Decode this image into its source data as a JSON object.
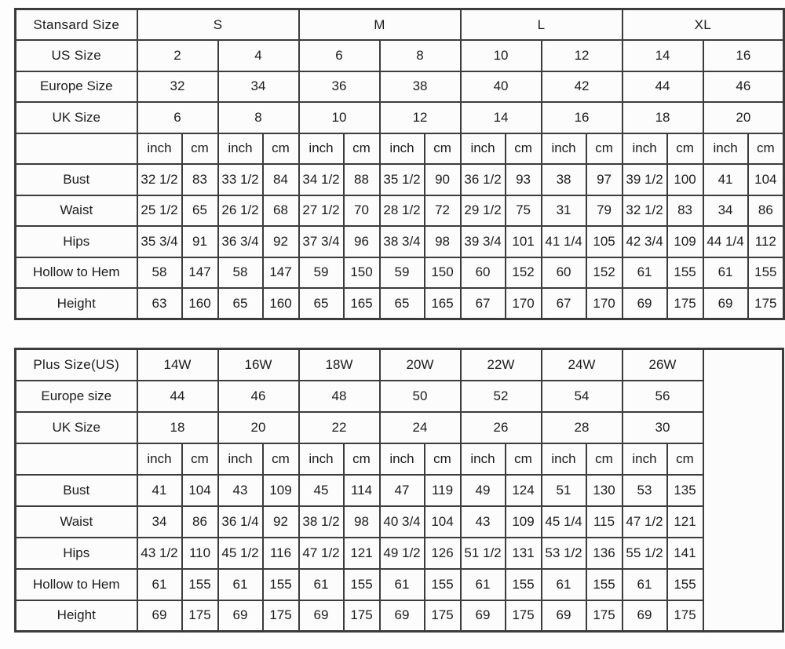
{
  "colors": {
    "border": "#3c3c3c",
    "cell_background": "#fcfcfc",
    "text": "#1c1c1c"
  },
  "unit_headers": {
    "inch": "inch",
    "cm": "cm"
  },
  "standard_table": {
    "header_label": "Stansard Size",
    "size_groups": [
      "S",
      "M",
      "L",
      "XL"
    ],
    "size_rows": [
      {
        "label": "US Size",
        "bold": true,
        "values": [
          "2",
          "4",
          "6",
          "8",
          "10",
          "12",
          "14",
          "16"
        ]
      },
      {
        "label": "Europe Size",
        "bold": false,
        "values": [
          "32",
          "34",
          "36",
          "38",
          "40",
          "42",
          "44",
          "46"
        ]
      },
      {
        "label": "UK Size",
        "bold": false,
        "values": [
          "6",
          "8",
          "10",
          "12",
          "14",
          "16",
          "18",
          "20"
        ]
      }
    ],
    "measurements": [
      {
        "label": "Bust",
        "pairs": [
          [
            "32 1/2",
            "83"
          ],
          [
            "33 1/2",
            "84"
          ],
          [
            "34 1/2",
            "88"
          ],
          [
            "35 1/2",
            "90"
          ],
          [
            "36 1/2",
            "93"
          ],
          [
            "38",
            "97"
          ],
          [
            "39 1/2",
            "100"
          ],
          [
            "41",
            "104"
          ]
        ]
      },
      {
        "label": "Waist",
        "pairs": [
          [
            "25 1/2",
            "65"
          ],
          [
            "26 1/2",
            "68"
          ],
          [
            "27 1/2",
            "70"
          ],
          [
            "28 1/2",
            "72"
          ],
          [
            "29 1/2",
            "75"
          ],
          [
            "31",
            "79"
          ],
          [
            "32 1/2",
            "83"
          ],
          [
            "34",
            "86"
          ]
        ]
      },
      {
        "label": "Hips",
        "pairs": [
          [
            "35 3/4",
            "91"
          ],
          [
            "36 3/4",
            "92"
          ],
          [
            "37 3/4",
            "96"
          ],
          [
            "38 3/4",
            "98"
          ],
          [
            "39 3/4",
            "101"
          ],
          [
            "41 1/4",
            "105"
          ],
          [
            "42 3/4",
            "109"
          ],
          [
            "44 1/4",
            "112"
          ]
        ]
      },
      {
        "label": "Hollow to Hem",
        "pairs": [
          [
            "58",
            "147"
          ],
          [
            "58",
            "147"
          ],
          [
            "59",
            "150"
          ],
          [
            "59",
            "150"
          ],
          [
            "60",
            "152"
          ],
          [
            "60",
            "152"
          ],
          [
            "61",
            "155"
          ],
          [
            "61",
            "155"
          ]
        ]
      },
      {
        "label": "Height",
        "pairs": [
          [
            "63",
            "160"
          ],
          [
            "65",
            "160"
          ],
          [
            "65",
            "165"
          ],
          [
            "65",
            "165"
          ],
          [
            "67",
            "170"
          ],
          [
            "67",
            "170"
          ],
          [
            "69",
            "175"
          ],
          [
            "69",
            "175"
          ]
        ]
      }
    ]
  },
  "plus_table": {
    "header_label": "Plus Size(US)",
    "sizes": [
      "14W",
      "16W",
      "18W",
      "20W",
      "22W",
      "24W",
      "26W"
    ],
    "size_rows": [
      {
        "label": "Europe size",
        "bold": false,
        "values": [
          "44",
          "46",
          "48",
          "50",
          "52",
          "54",
          "56"
        ]
      },
      {
        "label": "UK Size",
        "bold": false,
        "values": [
          "18",
          "20",
          "22",
          "24",
          "26",
          "28",
          "30"
        ]
      }
    ],
    "measurements": [
      {
        "label": "Bust",
        "pairs": [
          [
            "41",
            "104"
          ],
          [
            "43",
            "109"
          ],
          [
            "45",
            "114"
          ],
          [
            "47",
            "119"
          ],
          [
            "49",
            "124"
          ],
          [
            "51",
            "130"
          ],
          [
            "53",
            "135"
          ]
        ]
      },
      {
        "label": "Waist",
        "pairs": [
          [
            "34",
            "86"
          ],
          [
            "36 1/4",
            "92"
          ],
          [
            "38 1/2",
            "98"
          ],
          [
            "40 3/4",
            "104"
          ],
          [
            "43",
            "109"
          ],
          [
            "45 1/4",
            "115"
          ],
          [
            "47 1/2",
            "121"
          ]
        ]
      },
      {
        "label": "Hips",
        "pairs": [
          [
            "43 1/2",
            "110"
          ],
          [
            "45 1/2",
            "116"
          ],
          [
            "47 1/2",
            "121"
          ],
          [
            "49 1/2",
            "126"
          ],
          [
            "51 1/2",
            "131"
          ],
          [
            "53 1/2",
            "136"
          ],
          [
            "55 1/2",
            "141"
          ]
        ]
      },
      {
        "label": "Hollow to Hem",
        "pairs": [
          [
            "61",
            "155"
          ],
          [
            "61",
            "155"
          ],
          [
            "61",
            "155"
          ],
          [
            "61",
            "155"
          ],
          [
            "61",
            "155"
          ],
          [
            "61",
            "155"
          ],
          [
            "61",
            "155"
          ]
        ]
      },
      {
        "label": "Height",
        "pairs": [
          [
            "69",
            "175"
          ],
          [
            "69",
            "175"
          ],
          [
            "69",
            "175"
          ],
          [
            "69",
            "175"
          ],
          [
            "69",
            "175"
          ],
          [
            "69",
            "175"
          ],
          [
            "69",
            "175"
          ]
        ]
      }
    ]
  }
}
